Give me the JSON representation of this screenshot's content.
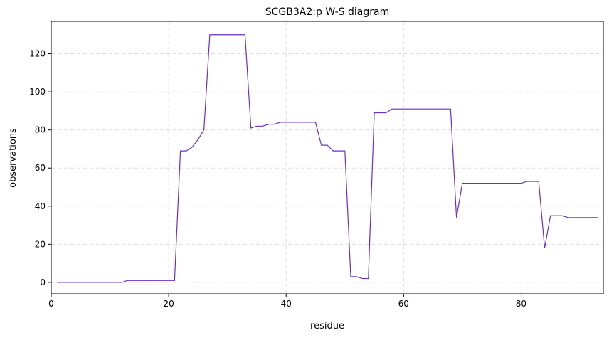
{
  "chart_data": {
    "type": "line",
    "title": "SCGB3A2:p W-S diagram",
    "x_label": "residue",
    "y_label": "observations",
    "x": [
      1,
      2,
      3,
      4,
      5,
      6,
      7,
      8,
      9,
      10,
      11,
      12,
      13,
      14,
      15,
      16,
      17,
      18,
      19,
      20,
      21,
      22,
      23,
      24,
      25,
      26,
      27,
      28,
      29,
      30,
      31,
      32,
      33,
      34,
      35,
      36,
      37,
      38,
      39,
      40,
      41,
      42,
      43,
      44,
      45,
      46,
      47,
      48,
      49,
      50,
      51,
      52,
      53,
      54,
      55,
      56,
      57,
      58,
      59,
      60,
      61,
      62,
      63,
      64,
      65,
      66,
      67,
      68,
      69,
      70,
      71,
      72,
      73,
      74,
      75,
      76,
      77,
      78,
      79,
      80,
      81,
      82,
      83,
      84,
      85,
      86,
      87,
      88,
      89,
      90,
      91,
      92,
      93
    ],
    "series": [
      {
        "name": "observations",
        "color": "#6a2fcb",
        "values": [
          0,
          0,
          0,
          0,
          0,
          0,
          0,
          0,
          0,
          0,
          0,
          0,
          1,
          1,
          1,
          1,
          1,
          1,
          1,
          1,
          1,
          69,
          69,
          71,
          75,
          80,
          130,
          130,
          130,
          130,
          130,
          130,
          130,
          81,
          82,
          82,
          83,
          83,
          84,
          84,
          84,
          84,
          84,
          84,
          84,
          72,
          72,
          69,
          69,
          69,
          3,
          3,
          2,
          2,
          89,
          89,
          89,
          91,
          91,
          91,
          91,
          91,
          91,
          91,
          91,
          91,
          91,
          91,
          34,
          52,
          52,
          52,
          52,
          52,
          52,
          52,
          52,
          52,
          52,
          52,
          53,
          53,
          53,
          18,
          35,
          35,
          35,
          34,
          34,
          34,
          34,
          34,
          34
        ]
      }
    ],
    "xlim": [
      0,
      94
    ],
    "ylim": [
      -6,
      137
    ],
    "xticks": [
      0,
      20,
      40,
      60,
      80
    ],
    "yticks": [
      0,
      20,
      40,
      60,
      80,
      100,
      120
    ],
    "grid": true
  }
}
